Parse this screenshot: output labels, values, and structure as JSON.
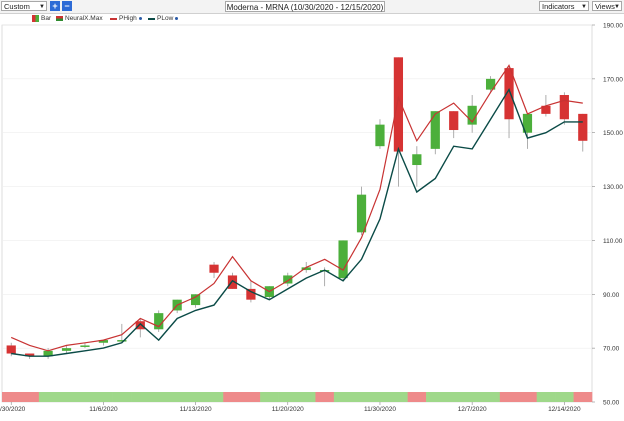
{
  "toolbar": {
    "range_select": "Custom",
    "add_label": "+",
    "remove_label": "−",
    "title": "Moderna - MRNA (10/30/2020 - 12/15/2020)",
    "indicators_label": "Indicators",
    "views_label": "Views",
    "dropdown_icon": "chevron-down-icon"
  },
  "legend": [
    {
      "label": "Bar",
      "color": "#2e8b2e"
    },
    {
      "label": "NeuralX.Max",
      "color": "#cc3333"
    },
    {
      "label": "PHigh",
      "color": "#c83333"
    },
    {
      "label": "PLow",
      "color": "#0b4b47"
    }
  ],
  "chart_data": {
    "type": "candlestick",
    "ylim": [
      50,
      190
    ],
    "y_ticks": [
      "190.00",
      "170.00",
      "150.00",
      "130.00",
      "110.00",
      "90.00",
      "70.00",
      "50.00"
    ],
    "x_tick_labels": [
      "/30/2020",
      "11/6/2020",
      "11/13/2020",
      "11/20/2020",
      "11/30/2020",
      "12/7/2020",
      "12/14/2020"
    ],
    "x_tick_index": [
      0,
      5,
      10,
      15,
      20,
      25,
      30
    ],
    "colors": {
      "up": "#4caf3b",
      "down": "#d63333",
      "wick": "#999999",
      "phigh": "#c83333",
      "plow": "#0b4b47",
      "strip_up": "#9fd88a",
      "strip_down": "#ee8a8a"
    },
    "candles": [
      {
        "o": 71,
        "h": 72,
        "l": 67,
        "c": 68
      },
      {
        "o": 68,
        "h": 68,
        "l": 66,
        "c": 67
      },
      {
        "o": 67,
        "h": 70,
        "l": 66,
        "c": 69
      },
      {
        "o": 69,
        "h": 71,
        "l": 68,
        "c": 70
      },
      {
        "o": 71,
        "h": 72,
        "l": 70,
        "c": 71
      },
      {
        "o": 72,
        "h": 73,
        "l": 71,
        "c": 73
      },
      {
        "o": 73,
        "h": 79,
        "l": 72,
        "c": 73
      },
      {
        "o": 80,
        "h": 81,
        "l": 74,
        "c": 77
      },
      {
        "o": 77,
        "h": 84,
        "l": 76,
        "c": 83
      },
      {
        "o": 84,
        "h": 88,
        "l": 83,
        "c": 88
      },
      {
        "o": 86,
        "h": 90,
        "l": 85,
        "c": 90
      },
      {
        "o": 101,
        "h": 102,
        "l": 96,
        "c": 98
      },
      {
        "o": 97,
        "h": 98,
        "l": 92,
        "c": 92
      },
      {
        "o": 92,
        "h": 95,
        "l": 87,
        "c": 88
      },
      {
        "o": 89,
        "h": 93,
        "l": 88,
        "c": 93
      },
      {
        "o": 94,
        "h": 98,
        "l": 93,
        "c": 97
      },
      {
        "o": 99,
        "h": 102,
        "l": 98,
        "c": 100
      },
      {
        "o": 99,
        "h": 100,
        "l": 93,
        "c": 99
      },
      {
        "o": 96,
        "h": 110,
        "l": 95,
        "c": 110
      },
      {
        "o": 113,
        "h": 130,
        "l": 112,
        "c": 127
      },
      {
        "o": 145,
        "h": 155,
        "l": 144,
        "c": 153
      },
      {
        "o": 178,
        "h": 178,
        "l": 130,
        "c": 143
      },
      {
        "o": 138,
        "h": 145,
        "l": 130,
        "c": 142
      },
      {
        "o": 144,
        "h": 158,
        "l": 142,
        "c": 158
      },
      {
        "o": 158,
        "h": 158,
        "l": 148,
        "c": 151
      },
      {
        "o": 153,
        "h": 164,
        "l": 150,
        "c": 160
      },
      {
        "o": 166,
        "h": 171,
        "l": 165,
        "c": 170
      },
      {
        "o": 174,
        "h": 175,
        "l": 148,
        "c": 155
      },
      {
        "o": 150,
        "h": 157,
        "l": 144,
        "c": 157
      },
      {
        "o": 160,
        "h": 164,
        "l": 156,
        "c": 157
      },
      {
        "o": 164,
        "h": 165,
        "l": 153,
        "c": 155
      },
      {
        "o": 157,
        "h": 157,
        "l": 143,
        "c": 147
      }
    ],
    "phigh": [
      74,
      71,
      69,
      71,
      72,
      73,
      75,
      81,
      78,
      86,
      89,
      94,
      104,
      95,
      91,
      95,
      100,
      103,
      99,
      111,
      129,
      163,
      147,
      157,
      161,
      154,
      165,
      175,
      157,
      160,
      162,
      161
    ],
    "plow": [
      68,
      67,
      67,
      68,
      69,
      70,
      72,
      79,
      73,
      81,
      84,
      86,
      95,
      91,
      88,
      92,
      96,
      99,
      95,
      103,
      118,
      144,
      128,
      133,
      145,
      144,
      155,
      166,
      148,
      150,
      154,
      154
    ],
    "strip": [
      "down",
      "down",
      "up",
      "up",
      "up",
      "up",
      "up",
      "up",
      "up",
      "up",
      "up",
      "up",
      "down",
      "down",
      "up",
      "up",
      "up",
      "down",
      "up",
      "up",
      "up",
      "up",
      "down",
      "up",
      "up",
      "up",
      "up",
      "down",
      "down",
      "up",
      "up",
      "down"
    ]
  }
}
